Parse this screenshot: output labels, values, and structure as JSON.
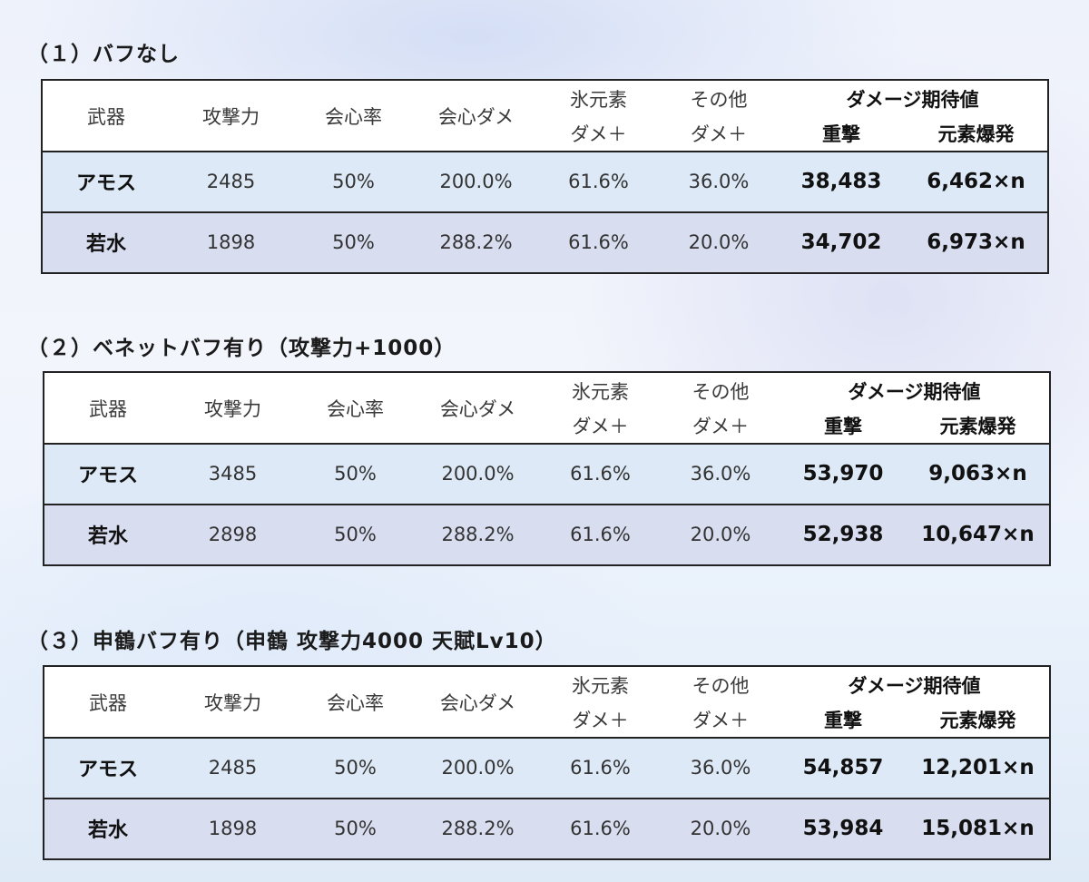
{
  "headers": {
    "weapon": "武器",
    "atk": "攻撃力",
    "crit_rate": "会心率",
    "crit_dmg": "会心ダメ",
    "cryo_l1": "氷元素",
    "cryo_l2": "ダメ＋",
    "other_l1": "その他",
    "other_l2": "ダメ＋",
    "expected": "ダメージ期待値",
    "charged": "重撃",
    "burst": "元素爆発"
  },
  "sections": [
    {
      "title": "（１）バフなし",
      "rows": [
        {
          "weapon": "アモス",
          "atk": "2485",
          "crit_rate": "50%",
          "crit_dmg": "200.0%",
          "cryo": "61.6%",
          "other": "36.0%",
          "charged": "38,483",
          "burst": "6,462×n"
        },
        {
          "weapon": "若水",
          "atk": "1898",
          "crit_rate": "50%",
          "crit_dmg": "288.2%",
          "cryo": "61.6%",
          "other": "20.0%",
          "charged": "34,702",
          "burst": "6,973×n"
        }
      ]
    },
    {
      "title": "（２）ベネットバフ有り（攻撃力+1000）",
      "rows": [
        {
          "weapon": "アモス",
          "atk": "3485",
          "crit_rate": "50%",
          "crit_dmg": "200.0%",
          "cryo": "61.6%",
          "other": "36.0%",
          "charged": "53,970",
          "burst": "9,063×n"
        },
        {
          "weapon": "若水",
          "atk": "2898",
          "crit_rate": "50%",
          "crit_dmg": "288.2%",
          "cryo": "61.6%",
          "other": "20.0%",
          "charged": "52,938",
          "burst": "10,647×n"
        }
      ]
    },
    {
      "title": "（３）申鶴バフ有り（申鶴 攻撃力4000 天賦Lv10）",
      "rows": [
        {
          "weapon": "アモス",
          "atk": "2485",
          "crit_rate": "50%",
          "crit_dmg": "200.0%",
          "cryo": "61.6%",
          "other": "36.0%",
          "charged": "54,857",
          "burst": "12,201×n"
        },
        {
          "weapon": "若水",
          "atk": "1898",
          "crit_rate": "50%",
          "crit_dmg": "288.2%",
          "cryo": "61.6%",
          "other": "20.0%",
          "charged": "53,984",
          "burst": "15,081×n"
        }
      ]
    }
  ]
}
